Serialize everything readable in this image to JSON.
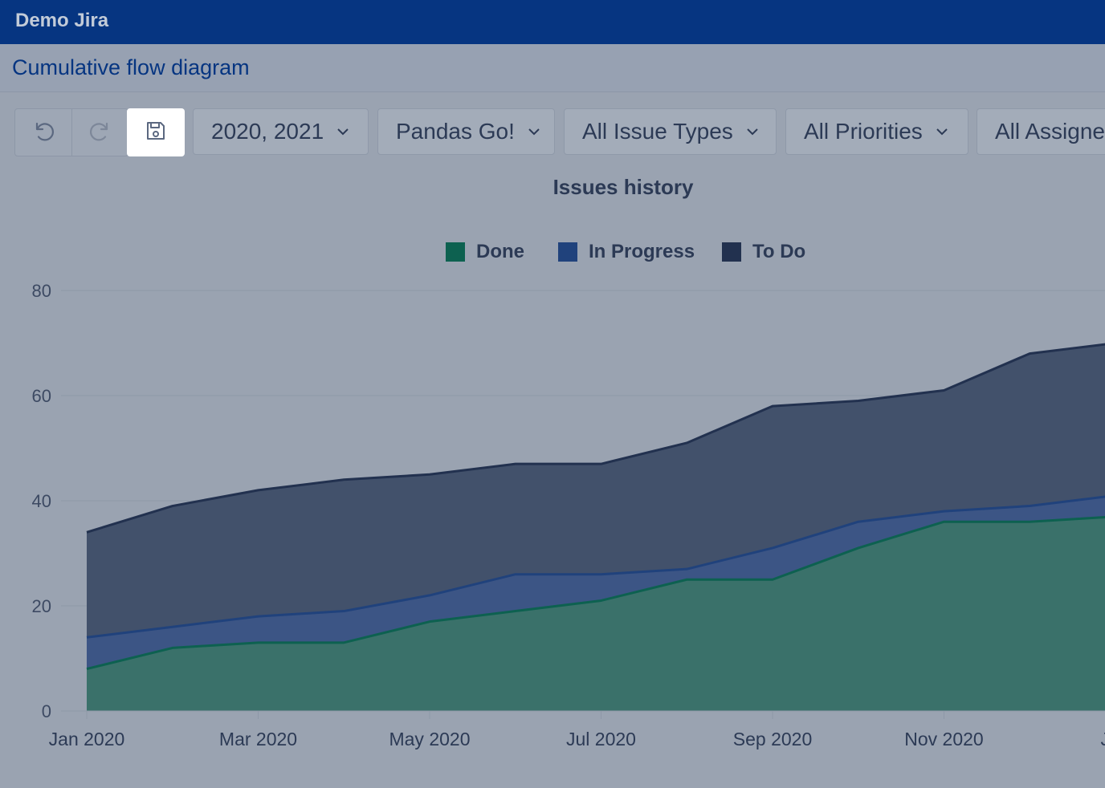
{
  "app": {
    "title": "Demo Jira"
  },
  "page": {
    "title": "Cumulative flow diagram"
  },
  "toolbar": {
    "undo_icon": "undo-icon",
    "redo_icon": "redo-icon",
    "save_icon": "save-icon",
    "filters": [
      {
        "label": "2020, 2021"
      },
      {
        "label": "Pandas Go!"
      },
      {
        "label": "All Issue Types"
      },
      {
        "label": "All Priorities"
      },
      {
        "label": "All Assigne"
      }
    ]
  },
  "colors": {
    "topbar": "#063581",
    "done": "#0d6150",
    "in_progress": "#20427c",
    "to_do": "#22314f"
  },
  "chart_data": {
    "type": "area",
    "title": "Issues history",
    "stacked": true,
    "legend_position": "top",
    "x": [
      "Jan 2020",
      "Feb 2020",
      "Mar 2020",
      "Apr 2020",
      "May 2020",
      "Jun 2020",
      "Jul 2020",
      "Aug 2020",
      "Sep 2020",
      "Oct 2020",
      "Nov 2020",
      "Dec 2020",
      "Jan 2021"
    ],
    "x_tick_labels": [
      "Jan 2020",
      "Mar 2020",
      "May 2020",
      "Jul 2020",
      "Sep 2020",
      "Nov 2020",
      "Jan"
    ],
    "y_ticks": [
      0,
      20,
      40,
      60,
      80
    ],
    "ylim": [
      0,
      80
    ],
    "grid": true,
    "series": [
      {
        "name": "Done",
        "color": "#0d6150",
        "values": [
          8,
          12,
          13,
          13,
          17,
          19,
          21,
          25,
          25,
          31,
          36,
          36,
          37
        ]
      },
      {
        "name": "In Progress",
        "color": "#20427c",
        "values": [
          6,
          4,
          5,
          6,
          5,
          7,
          5,
          2,
          6,
          5,
          2,
          3,
          4
        ]
      },
      {
        "name": "To Do",
        "color": "#22314f",
        "values": [
          20,
          23,
          24,
          25,
          23,
          21,
          21,
          24,
          27,
          23,
          23,
          29,
          29
        ]
      }
    ]
  }
}
